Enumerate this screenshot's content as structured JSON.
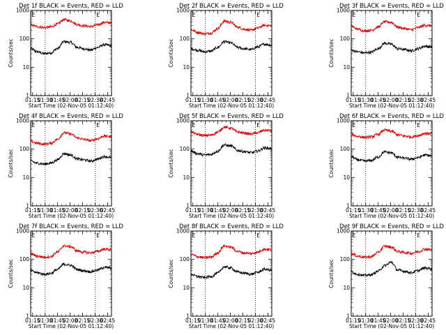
{
  "chart_data": {
    "type": "line",
    "layout": "3x3 grid",
    "y_scale": "log",
    "ylim": [
      1,
      1000
    ],
    "ylabel": "Counts/sec",
    "xlabel": "Start Time (02-Nov-05 01:12:40)",
    "y_tick_labels": [
      "1",
      "10",
      "100",
      "1000"
    ],
    "x_tick_labels": [
      "01:15",
      "01:30",
      "01:45",
      "02:00",
      "02:15",
      "02:30",
      "02:45"
    ],
    "x_ticks_min": [
      2.33,
      17.33,
      32.33,
      47.33,
      62.33,
      77.33,
      92.33
    ],
    "x_range_min": [
      0,
      97
    ],
    "vertical_dotted_lines_min": [
      17.33,
      77.33
    ],
    "marker_letter": "E",
    "marker_x_min": [
      0.5,
      78
    ],
    "series_colors": {
      "events": "#000000",
      "lld": "#dd0000"
    },
    "x_min": [
      0,
      8,
      16,
      24,
      32,
      40,
      48,
      56,
      64,
      72,
      80,
      88,
      97
    ],
    "panels": [
      {
        "title": "Det 1f BLACK = Events, RED = LLD",
        "series": [
          {
            "name": "BLACK = Events",
            "values": [
              45,
              35,
              30,
              32,
              45,
              80,
              75,
              50,
              45,
              40,
              50,
              62,
              58
            ]
          },
          {
            "name": "RED = LLD",
            "values": [
              310,
              270,
              250,
              260,
              330,
              480,
              430,
              320,
              290,
              270,
              310,
              380,
              370
            ]
          }
        ]
      },
      {
        "title": "Det 2f BLACK = Events, RED = LLD",
        "series": [
          {
            "name": "BLACK = Events",
            "values": [
              45,
              40,
              35,
              37,
              50,
              80,
              72,
              50,
              45,
              42,
              52,
              65,
              60
            ]
          },
          {
            "name": "RED = LLD",
            "values": [
              210,
              170,
              150,
              160,
              230,
              420,
              380,
              260,
              220,
              200,
              240,
              300,
              290
            ]
          }
        ]
      },
      {
        "title": "Det 3f BLACK = Events, RED = LLD",
        "series": [
          {
            "name": "BLACK = Events",
            "values": [
              40,
              35,
              32,
              34,
              45,
              70,
              65,
              45,
              42,
              38,
              45,
              55,
              52
            ]
          },
          {
            "name": "RED = LLD",
            "values": [
              280,
              220,
              190,
              200,
              260,
              400,
              380,
              260,
              230,
              210,
              250,
              300,
              290
            ]
          }
        ]
      },
      {
        "title": "Det 4f BLACK = Events, RED = LLD",
        "series": [
          {
            "name": "BLACK = Events",
            "values": [
              38,
              32,
              30,
              32,
              42,
              70,
              62,
              45,
              42,
              38,
              44,
              55,
              50
            ]
          },
          {
            "name": "RED = LLD",
            "values": [
              190,
              160,
              150,
              160,
              220,
              380,
              340,
              250,
              220,
              200,
              230,
              290,
              270
            ]
          }
        ]
      },
      {
        "title": "Det 5f BLACK = Events, RED = LLD",
        "series": [
          {
            "name": "BLACK = Events",
            "values": [
              85,
              70,
              62,
              65,
              85,
              140,
              130,
              90,
              82,
              75,
              85,
              110,
              105
            ]
          },
          {
            "name": "RED = LLD",
            "values": [
              400,
              330,
              300,
              310,
              400,
              600,
              550,
              400,
              370,
              340,
              380,
              460,
              450
            ]
          }
        ]
      },
      {
        "title": "Det 6f BLACK = Events, RED = LLD",
        "series": [
          {
            "name": "BLACK = Events",
            "values": [
              55,
              42,
              38,
              40,
              52,
              80,
              74,
              52,
              48,
              44,
              50,
              62,
              58
            ]
          },
          {
            "name": "RED = LLD",
            "values": [
              330,
              280,
              260,
              270,
              330,
              470,
              430,
              320,
              290,
              270,
              300,
              360,
              350
            ]
          }
        ]
      },
      {
        "title": "Det 7f BLACK = Events, RED = LLD",
        "series": [
          {
            "name": "BLACK = Events",
            "values": [
              40,
              34,
              30,
              32,
              44,
              68,
              62,
              44,
              40,
              37,
              42,
              52,
              50
            ]
          },
          {
            "name": "RED = LLD",
            "values": [
              160,
              130,
              120,
              125,
              180,
              300,
              280,
              200,
              180,
              170,
              190,
              230,
              220
            ]
          }
        ]
      },
      {
        "title": "Det 8f BLACK = Events, RED = LLD",
        "series": [
          {
            "name": "BLACK = Events",
            "values": [
              30,
              25,
              23,
              25,
              33,
              55,
              50,
              36,
              33,
              30,
              35,
              45,
              42
            ]
          },
          {
            "name": "RED = LLD",
            "values": [
              150,
              125,
              115,
              120,
              170,
              300,
              270,
              190,
              170,
              160,
              180,
              230,
              220
            ]
          }
        ]
      },
      {
        "title": "Det 9f BLACK = Events, RED = LLD",
        "series": [
          {
            "name": "BLACK = Events",
            "values": [
              36,
              30,
              27,
              29,
              38,
              60,
              80,
              42,
              38,
              34,
              40,
              50,
              47
            ]
          },
          {
            "name": "RED = LLD",
            "values": [
              160,
              130,
              120,
              125,
              175,
              290,
              270,
              190,
              175,
              165,
              185,
              230,
              220
            ]
          }
        ]
      }
    ]
  }
}
